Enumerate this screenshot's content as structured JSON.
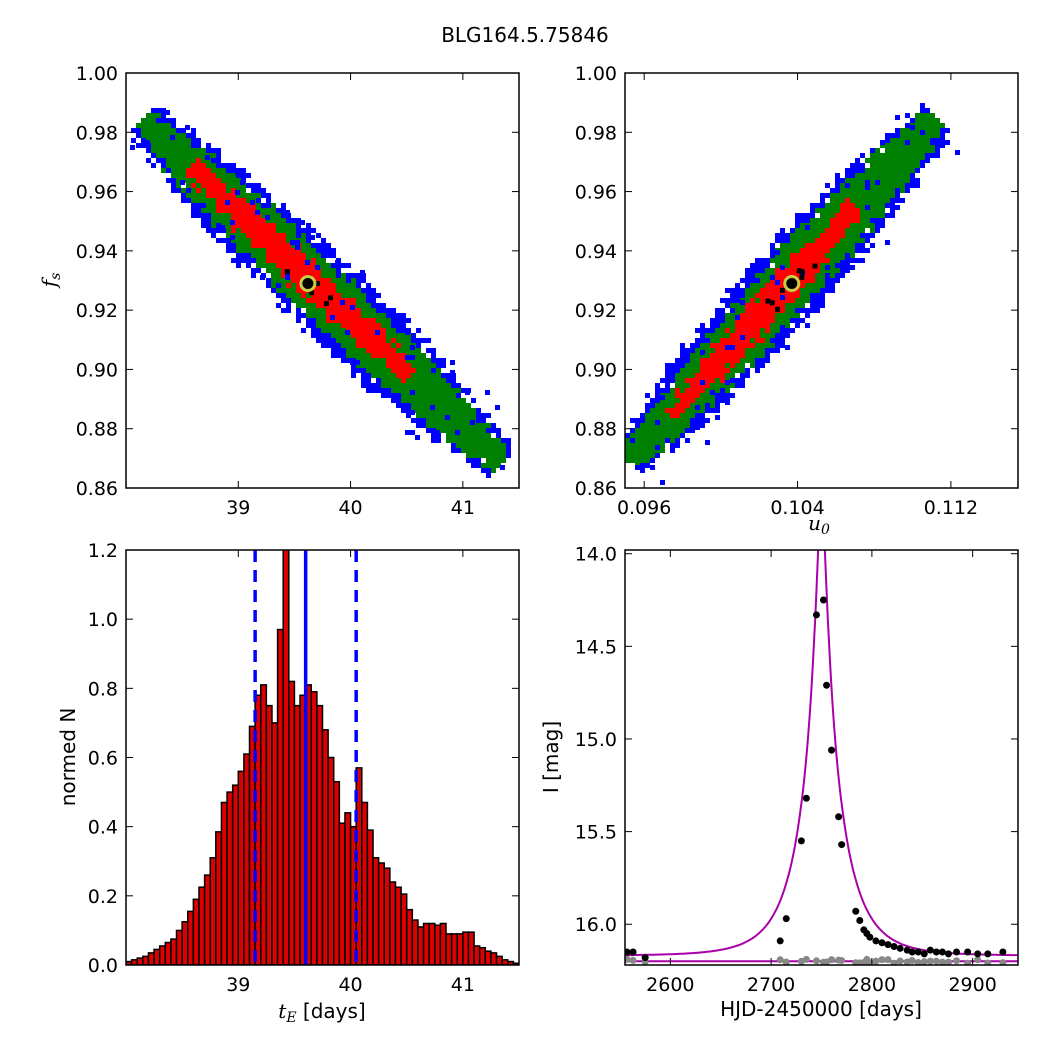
{
  "figure": {
    "title": "BLG164.5.75846"
  },
  "chart_data": [
    {
      "id": "fs-vs-tE",
      "type": "heatmap",
      "xlabel": "",
      "ylabel": "f_s",
      "xlim": [
        38.0,
        41.5
      ],
      "ylim": [
        0.86,
        1.0
      ],
      "xticks": [
        39,
        40,
        41
      ],
      "yticks": [
        0.86,
        0.88,
        0.9,
        0.92,
        0.94,
        0.96,
        0.98,
        1.0
      ],
      "ytick_labels": [
        "0.86",
        "0.88",
        "0.90",
        "0.92",
        "0.94",
        "0.96",
        "0.98",
        "1.00"
      ],
      "density_levels": [
        "blue",
        "green",
        "red",
        "black"
      ],
      "colors": {
        "outer": "#0000ff",
        "mid": "#008000",
        "inner": "#ff0000",
        "core": "#000000",
        "best_fit": "#cccc44"
      },
      "ridge": {
        "x_start": 38.2,
        "y_start": 0.982,
        "x_end": 41.3,
        "y_end": 0.87
      },
      "best_fit": {
        "x": 39.62,
        "y": 0.929
      }
    },
    {
      "id": "fs-vs-u0",
      "type": "heatmap",
      "xlabel": "u_0",
      "ylabel": "",
      "xlim": [
        0.095,
        0.1155
      ],
      "ylim": [
        0.86,
        1.0
      ],
      "xticks": [
        0.096,
        0.104,
        0.112
      ],
      "xtick_labels": [
        "0.096",
        "0.104",
        "0.112"
      ],
      "yticks": [
        0.86,
        0.88,
        0.9,
        0.92,
        0.94,
        0.96,
        0.98,
        1.0
      ],
      "ytick_labels": [
        "0.86",
        "0.88",
        "0.90",
        "0.92",
        "0.94",
        "0.96",
        "0.98",
        "1.00"
      ],
      "density_levels": [
        "blue",
        "green",
        "red",
        "black"
      ],
      "colors": {
        "outer": "#0000ff",
        "mid": "#008000",
        "inner": "#ff0000",
        "core": "#000000",
        "best_fit": "#cccc44"
      },
      "ridge": {
        "x_start": 0.0955,
        "y_start": 0.871,
        "x_end": 0.111,
        "y_end": 0.983
      },
      "best_fit": {
        "x": 0.1037,
        "y": 0.929
      }
    },
    {
      "id": "tE-histogram",
      "type": "bar",
      "xlabel": "t_E  [days]",
      "ylabel": "normed N",
      "xlim": [
        38.0,
        41.5
      ],
      "ylim": [
        0.0,
        1.2
      ],
      "xticks": [
        39,
        40,
        41
      ],
      "yticks": [
        0.0,
        0.2,
        0.4,
        0.6,
        0.8,
        1.0,
        1.2
      ],
      "ytick_labels": [
        "0.0",
        "0.2",
        "0.4",
        "0.6",
        "0.8",
        "1.0",
        "1.2"
      ],
      "bin_start": 38.0,
      "bin_width": 0.05,
      "values": [
        0.01,
        0.015,
        0.02,
        0.025,
        0.035,
        0.045,
        0.055,
        0.065,
        0.075,
        0.1,
        0.125,
        0.155,
        0.19,
        0.225,
        0.26,
        0.31,
        0.385,
        0.47,
        0.5,
        0.52,
        0.56,
        0.61,
        0.69,
        0.78,
        0.81,
        0.75,
        0.7,
        0.97,
        1.2,
        0.82,
        0.75,
        0.78,
        0.81,
        0.79,
        0.75,
        0.68,
        0.6,
        0.53,
        0.41,
        0.44,
        0.4,
        0.57,
        0.47,
        0.39,
        0.31,
        0.295,
        0.28,
        0.24,
        0.225,
        0.205,
        0.16,
        0.13,
        0.11,
        0.12,
        0.12,
        0.115,
        0.12,
        0.09,
        0.09,
        0.09,
        0.095,
        0.095,
        0.055,
        0.05,
        0.04,
        0.035,
        0.025,
        0.015,
        0.01,
        0.005
      ],
      "colors": {
        "bar": "#dd0000",
        "edge": "#000000",
        "line": "#0000ff"
      },
      "vlines": {
        "median": 39.6,
        "lower": 39.15,
        "upper": 40.05
      }
    },
    {
      "id": "light-curve",
      "type": "scatter",
      "xlabel": "HJD-2450000 [days]",
      "ylabel": "I [mag]",
      "xlim": [
        2555,
        2945
      ],
      "ylim": [
        16.22,
        13.98
      ],
      "y_inverted": true,
      "xticks": [
        2600,
        2700,
        2800,
        2900
      ],
      "yticks": [
        14.0,
        14.5,
        15.0,
        15.5,
        16.0
      ],
      "ytick_labels": [
        "14.0",
        "14.5",
        "15.0",
        "15.5",
        "16.0"
      ],
      "model": {
        "t0": 2750,
        "tE": 39.6,
        "u0": 0.1037,
        "base_mag": 16.17
      },
      "points": [
        {
          "x": 2557,
          "y": 16.15
        },
        {
          "x": 2563,
          "y": 16.15
        },
        {
          "x": 2575,
          "y": 16.18
        },
        {
          "x": 2709,
          "y": 16.09
        },
        {
          "x": 2715,
          "y": 15.97
        },
        {
          "x": 2730,
          "y": 15.55
        },
        {
          "x": 2735,
          "y": 15.32
        },
        {
          "x": 2745,
          "y": 14.33
        },
        {
          "x": 2752,
          "y": 14.25
        },
        {
          "x": 2755,
          "y": 14.71
        },
        {
          "x": 2760,
          "y": 15.06
        },
        {
          "x": 2767,
          "y": 15.42
        },
        {
          "x": 2770,
          "y": 15.57
        },
        {
          "x": 2784,
          "y": 15.93
        },
        {
          "x": 2788,
          "y": 15.98
        },
        {
          "x": 2792,
          "y": 16.03
        },
        {
          "x": 2795,
          "y": 16.05
        },
        {
          "x": 2798,
          "y": 16.07
        },
        {
          "x": 2804,
          "y": 16.09
        },
        {
          "x": 2810,
          "y": 16.1
        },
        {
          "x": 2816,
          "y": 16.11
        },
        {
          "x": 2822,
          "y": 16.12
        },
        {
          "x": 2828,
          "y": 16.13
        },
        {
          "x": 2835,
          "y": 16.14
        },
        {
          "x": 2840,
          "y": 16.15
        },
        {
          "x": 2846,
          "y": 16.15
        },
        {
          "x": 2852,
          "y": 16.16
        },
        {
          "x": 2858,
          "y": 16.14
        },
        {
          "x": 2864,
          "y": 16.15
        },
        {
          "x": 2870,
          "y": 16.15
        },
        {
          "x": 2876,
          "y": 16.16
        },
        {
          "x": 2884,
          "y": 16.15
        },
        {
          "x": 2895,
          "y": 16.15
        },
        {
          "x": 2905,
          "y": 16.16
        },
        {
          "x": 2915,
          "y": 16.16
        },
        {
          "x": 2930,
          "y": 16.15
        }
      ],
      "residual_level": 16.2,
      "colors": {
        "points": "#000000",
        "model": "#aa00aa",
        "residuals": "#888888"
      }
    }
  ]
}
